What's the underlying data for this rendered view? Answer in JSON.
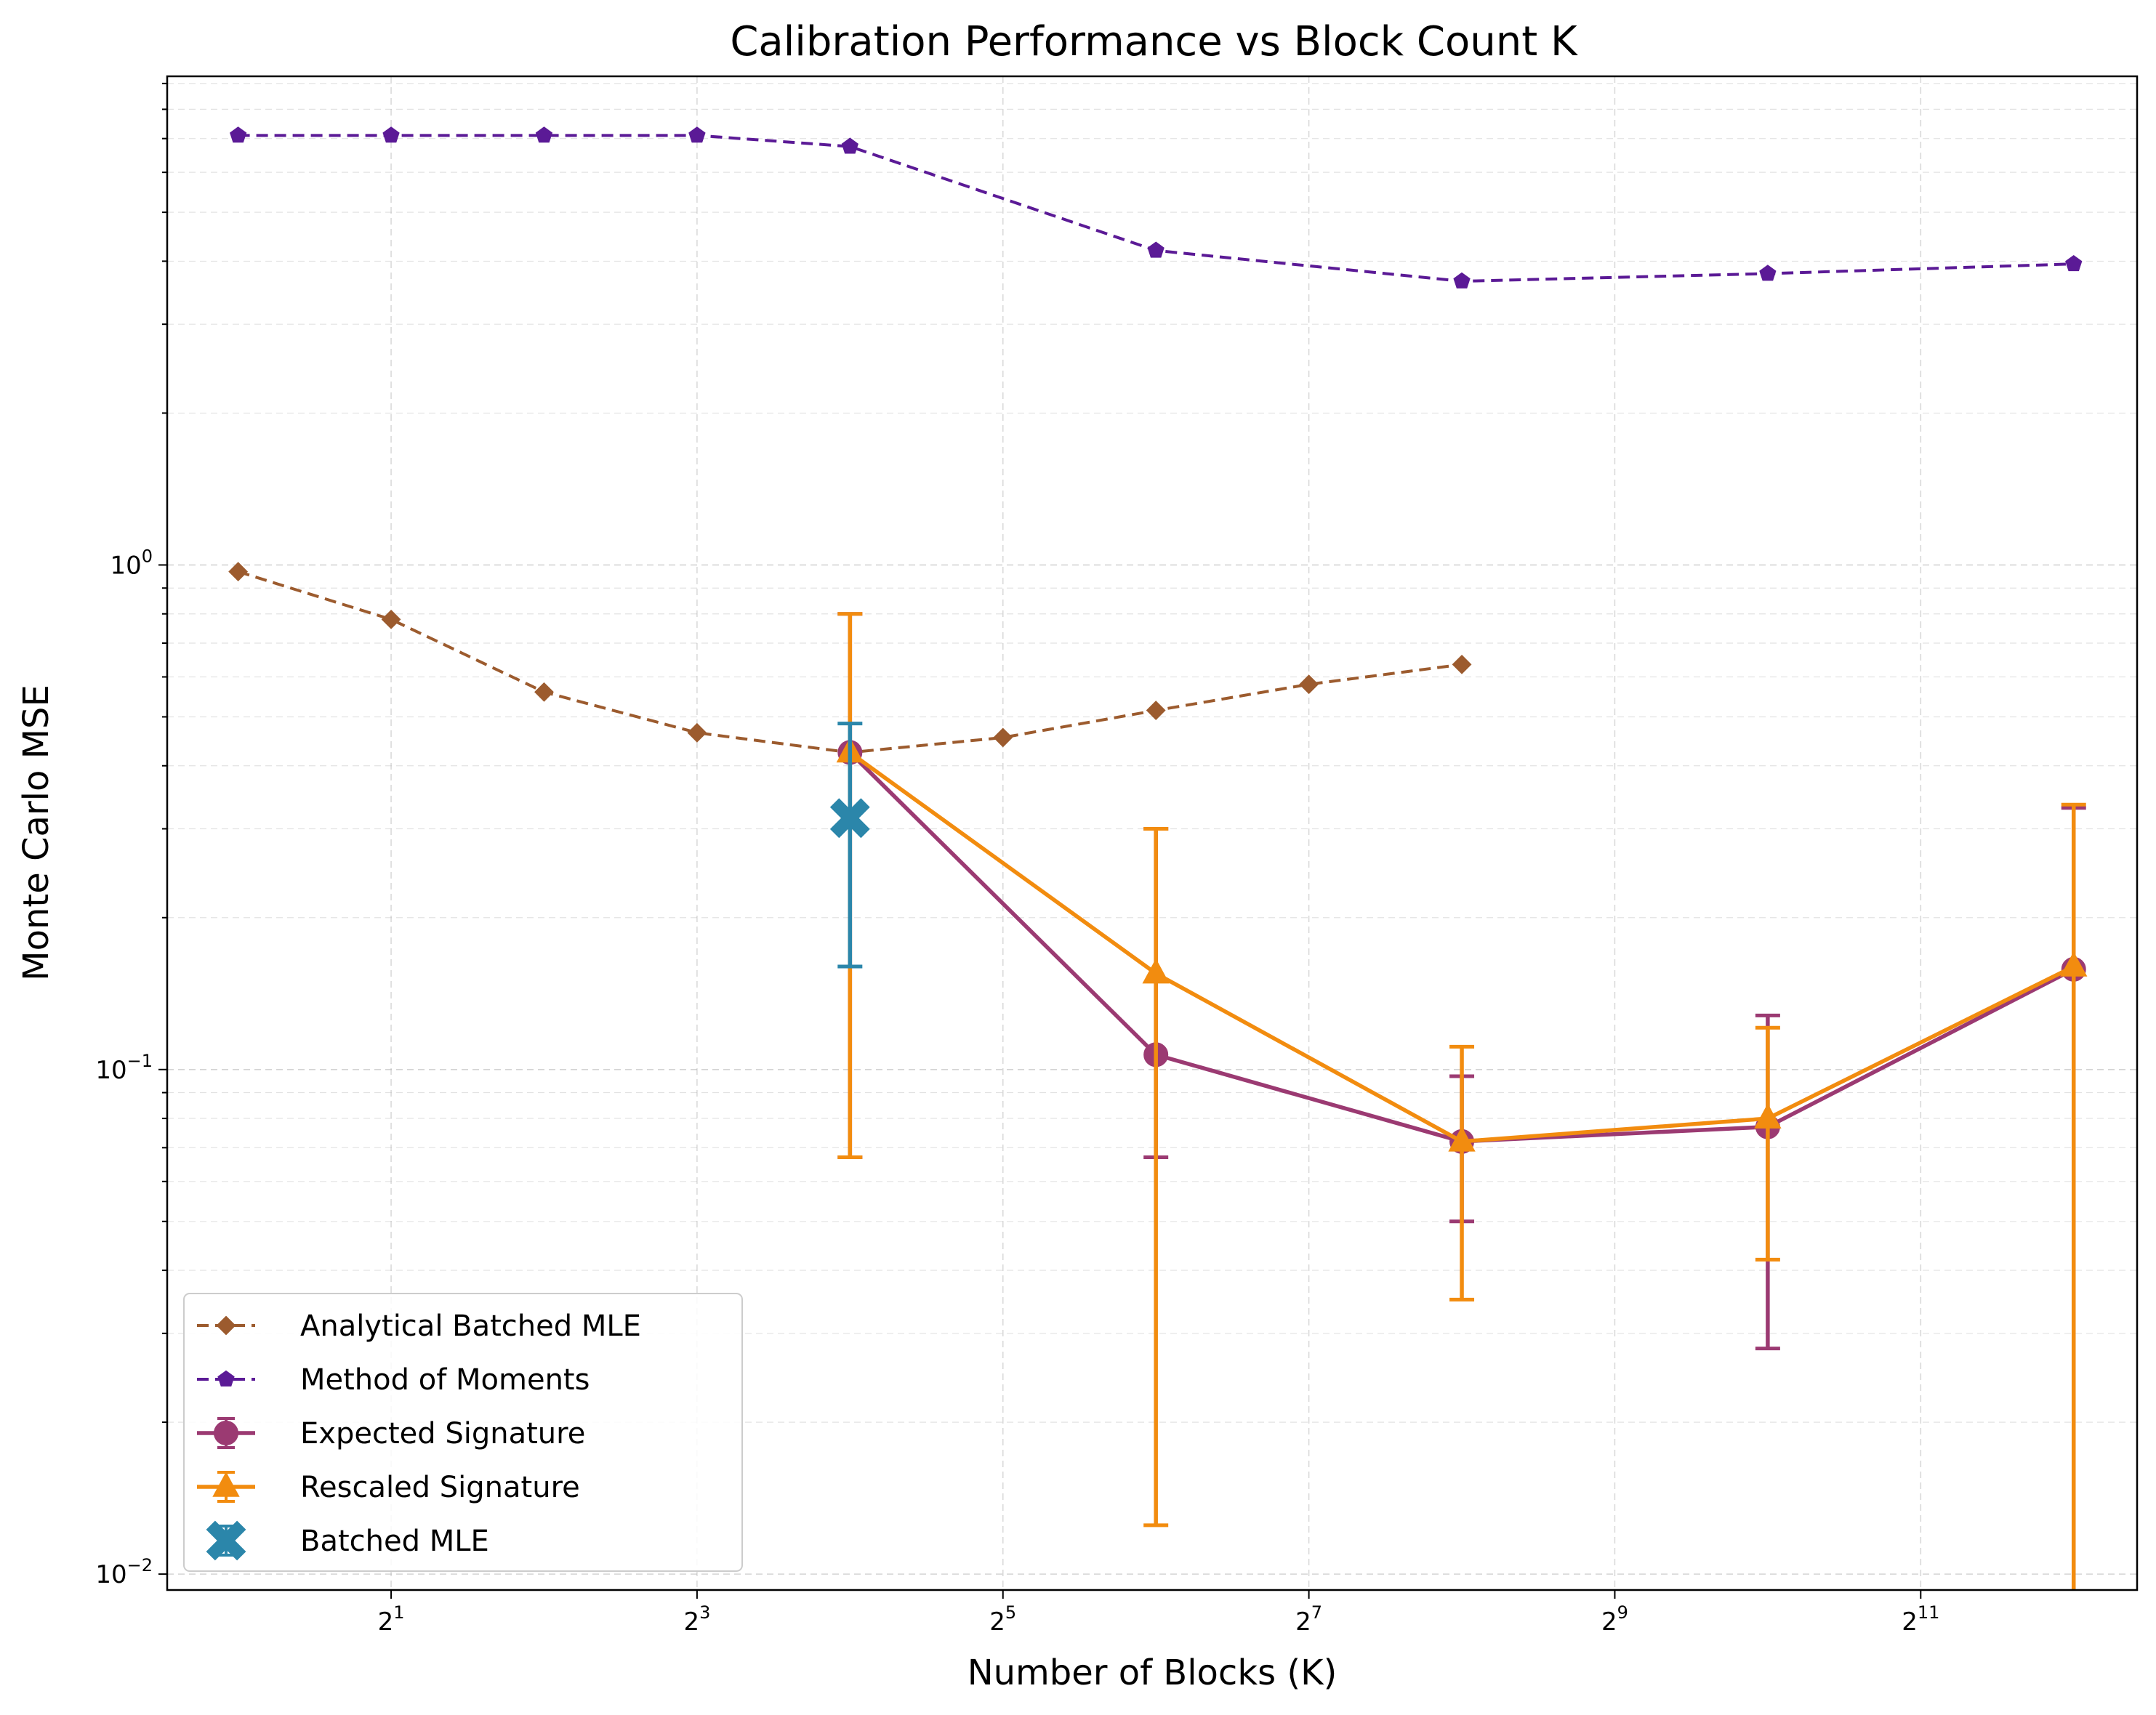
{
  "chart_data": {
    "type": "line",
    "title": "Calibration Performance vs Block Count K",
    "xlabel": "Number of Blocks (K)",
    "ylabel": "Monte Carlo MSE",
    "xscale": "log2",
    "yscale": "log10",
    "xlim": [
      0.725,
      5460
    ],
    "ylim": [
      0.0093,
      9.3
    ],
    "x_ticks": [
      {
        "value": 2,
        "base": "2",
        "exp": "1"
      },
      {
        "value": 8,
        "base": "2",
        "exp": "3"
      },
      {
        "value": 32,
        "base": "2",
        "exp": "5"
      },
      {
        "value": 128,
        "base": "2",
        "exp": "7"
      },
      {
        "value": 512,
        "base": "2",
        "exp": "9"
      },
      {
        "value": 2048,
        "base": "2",
        "exp": "11"
      }
    ],
    "y_ticks": [
      {
        "value": 0.01,
        "base": "10",
        "exp": "−2"
      },
      {
        "value": 0.1,
        "base": "10",
        "exp": "−1"
      },
      {
        "value": 1,
        "base": "10",
        "exp": "0"
      }
    ],
    "grid": true,
    "legend_position": "lower-left",
    "series": [
      {
        "name": "Analytical Batched MLE",
        "color": "#9c5b2e",
        "line_style": "dashed",
        "marker": "diamond",
        "x": [
          1,
          2,
          4,
          8,
          16,
          32,
          64,
          128,
          256
        ],
        "y": [
          0.97,
          0.78,
          0.56,
          0.465,
          0.425,
          0.455,
          0.515,
          0.58,
          0.635
        ]
      },
      {
        "name": "Method of Moments",
        "color": "#5b1a96",
        "line_style": "dashed",
        "marker": "pentagon",
        "x": [
          1,
          2,
          4,
          8,
          16,
          64,
          256,
          1024,
          4096
        ],
        "y": [
          7.1,
          7.1,
          7.1,
          7.1,
          6.75,
          4.2,
          3.65,
          3.78,
          3.95
        ]
      },
      {
        "name": "Expected Signature",
        "color": "#9b3a72",
        "line_style": "solid",
        "marker": "circle",
        "x": [
          16,
          64,
          256,
          1024,
          4096
        ],
        "y": [
          0.425,
          0.107,
          0.072,
          0.077,
          0.158
        ],
        "err_low": [
          0.067,
          0.067,
          0.05,
          0.028,
          0.0093
        ],
        "err_high": [
          0.8,
          0.3,
          0.097,
          0.128,
          0.33
        ]
      },
      {
        "name": "Rescaled Signature",
        "color": "#f28c0f",
        "line_style": "solid",
        "marker": "triangle",
        "x": [
          16,
          64,
          256,
          1024,
          4096
        ],
        "y": [
          0.425,
          0.155,
          0.072,
          0.08,
          0.16
        ],
        "err_low": [
          0.067,
          0.0125,
          0.035,
          0.042,
          0.0093
        ],
        "err_high": [
          0.8,
          0.3,
          0.111,
          0.121,
          0.335
        ]
      },
      {
        "name": "Batched MLE",
        "color": "#2b86aa",
        "line_style": "none",
        "marker": "x-filled",
        "x": [
          16
        ],
        "y": [
          0.315
        ],
        "err_low": [
          0.16
        ],
        "err_high": [
          0.485
        ]
      }
    ]
  }
}
